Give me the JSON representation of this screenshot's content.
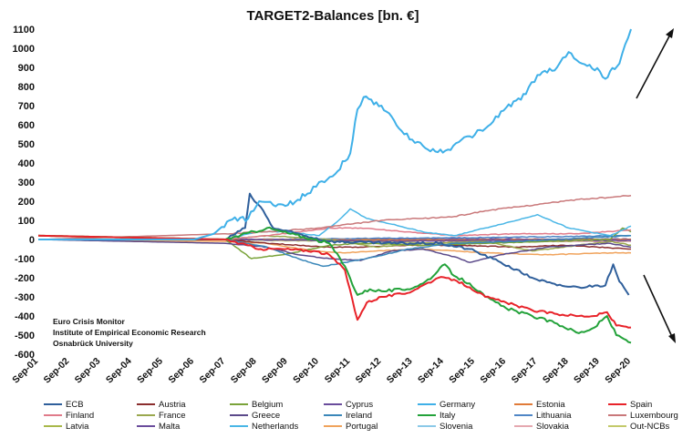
{
  "chart_data": {
    "type": "line",
    "title": "TARGET2-Balances [bn. €]",
    "xlabel": "",
    "ylabel": "",
    "ylim": [
      -600,
      1100
    ],
    "yticks": [
      1100,
      1000,
      900,
      800,
      700,
      600,
      500,
      400,
      300,
      200,
      100,
      0,
      -100,
      -200,
      -300,
      -400,
      -500,
      -600
    ],
    "xlim": [
      2001.67,
      2020.67
    ],
    "xticks": [
      "Sep-01",
      "Sep-02",
      "Sep-03",
      "Sep-04",
      "Sep-05",
      "Sep-06",
      "Sep-07",
      "Sep-08",
      "Sep-09",
      "Sep-10",
      "Sep-11",
      "Sep-12",
      "Sep-13",
      "Sep-14",
      "Sep-15",
      "Sep-16",
      "Sep-17",
      "Sep-18",
      "Sep-19",
      "Sep-20"
    ],
    "annotation_lines": [
      "Euro Crisis Monitor",
      "Institute of Empirical Economic Research",
      "Osnabrück University"
    ],
    "arrows": [
      "up",
      "down"
    ],
    "legend_position": "bottom",
    "series": [
      {
        "name": "ECB",
        "color": "#2f5f9b",
        "x": [
          2001.67,
          2007.67,
          2008.3,
          2008.45,
          2008.6,
          2008.8,
          2009.2,
          2011.0,
          2013.0,
          2014.5,
          2015.5,
          2016.5,
          2017.5,
          2018.3,
          2019.0,
          2019.6,
          2019.85,
          2020.1,
          2020.3,
          2020.6
        ],
        "y": [
          0,
          0,
          60,
          240,
          200,
          170,
          60,
          -10,
          -20,
          -20,
          -50,
          -120,
          -200,
          -240,
          -250,
          -240,
          -240,
          -130,
          -220,
          -290
        ]
      },
      {
        "name": "Austria",
        "color": "#8b2e2e",
        "x": [
          2001.67,
          2007.67,
          2009.0,
          2011.0,
          2012.0,
          2013.5,
          2015.0,
          2017.0,
          2018.5,
          2020.67
        ],
        "y": [
          0,
          0,
          -20,
          -40,
          -40,
          -30,
          -30,
          -40,
          -30,
          -50
        ]
      },
      {
        "name": "Belgium",
        "color": "#7aa33a",
        "x": [
          2001.67,
          2007.67,
          2008.0,
          2008.5,
          2009.5,
          2011.0,
          2012.0,
          2014.0,
          2016.0,
          2018.0,
          2020.0,
          2020.4,
          2020.67
        ],
        "y": [
          0,
          0,
          -40,
          -100,
          -80,
          -30,
          -20,
          -30,
          -20,
          -10,
          0,
          60,
          40
        ]
      },
      {
        "name": "Cyprus",
        "color": "#6a4c9c",
        "x": [
          2001.67,
          2008.0,
          2011.0,
          2012.5,
          2013.5,
          2016.0,
          2020.67
        ],
        "y": [
          0,
          0,
          -5,
          -10,
          -8,
          -5,
          -5
        ]
      },
      {
        "name": "Germany",
        "color": "#3fb0e8",
        "x": [
          2001.67,
          2006.67,
          2007.3,
          2007.8,
          2008.4,
          2008.75,
          2009.2,
          2009.67,
          2010.3,
          2010.67,
          2011.1,
          2011.67,
          2011.9,
          2012.1,
          2012.67,
          2013.4,
          2014.0,
          2014.4,
          2014.8,
          2015.5,
          2016.0,
          2016.67,
          2017.3,
          2017.67,
          2018.3,
          2018.67,
          2019.1,
          2019.67,
          2019.85,
          2020.0,
          2020.3,
          2020.67
        ],
        "y": [
          0,
          0,
          30,
          100,
          110,
          200,
          180,
          180,
          240,
          300,
          330,
          450,
          680,
          745,
          700,
          550,
          490,
          460,
          470,
          540,
          580,
          690,
          760,
          860,
          900,
          980,
          920,
          880,
          840,
          880,
          920,
          1100
        ]
      },
      {
        "name": "Estonia",
        "color": "#e07b39",
        "x": [
          2001.67,
          2008.0,
          2012.0,
          2016.0,
          2020.67
        ],
        "y": [
          0,
          0,
          -2,
          -2,
          0
        ]
      },
      {
        "name": "Spain",
        "color": "#e8232a",
        "x": [
          2001.67,
          2007.67,
          2008.8,
          2009.5,
          2010.5,
          2011.0,
          2011.5,
          2011.9,
          2012.2,
          2012.67,
          2013.5,
          2014.0,
          2014.5,
          2015.0,
          2015.5,
          2016.0,
          2016.67,
          2017.5,
          2018.3,
          2019.0,
          2019.5,
          2019.9,
          2020.2,
          2020.67
        ],
        "y": [
          20,
          0,
          -50,
          -50,
          -60,
          -80,
          -160,
          -420,
          -330,
          -300,
          -280,
          -240,
          -200,
          -210,
          -250,
          -300,
          -330,
          -370,
          -390,
          -400,
          -400,
          -380,
          -450,
          -460
        ]
      },
      {
        "name": "Finland",
        "color": "#e07b8a",
        "x": [
          2001.67,
          2007.67,
          2009.0,
          2011.0,
          2012.0,
          2013.5,
          2015.0,
          2017.0,
          2019.0,
          2020.67
        ],
        "y": [
          0,
          0,
          20,
          60,
          60,
          40,
          20,
          30,
          30,
          50
        ]
      },
      {
        "name": "France",
        "color": "#9aa84e",
        "x": [
          2001.67,
          2007.67,
          2009.0,
          2011.0,
          2012.5,
          2014.0,
          2016.0,
          2017.5,
          2019.0,
          2020.0,
          2020.67
        ],
        "y": [
          0,
          0,
          20,
          0,
          -40,
          -20,
          -10,
          -60,
          -30,
          -10,
          -30
        ]
      },
      {
        "name": "Greece",
        "color": "#5b4a8a",
        "x": [
          2001.67,
          2007.67,
          2009.0,
          2010.0,
          2011.0,
          2012.0,
          2013.0,
          2014.0,
          2015.0,
          2015.5,
          2016.5,
          2018.0,
          2020.0,
          2020.67
        ],
        "y": [
          0,
          -20,
          -40,
          -80,
          -100,
          -110,
          -60,
          -50,
          -90,
          -120,
          -80,
          -40,
          -20,
          -40
        ]
      },
      {
        "name": "Ireland",
        "color": "#3a87b9",
        "x": [
          2001.67,
          2007.67,
          2009.0,
          2010.0,
          2010.8,
          2011.5,
          2012.5,
          2013.5,
          2015.0,
          2017.0,
          2020.67
        ],
        "y": [
          0,
          0,
          -40,
          -100,
          -140,
          -120,
          -90,
          -50,
          -20,
          -10,
          20
        ]
      },
      {
        "name": "Italy",
        "color": "#23a23a",
        "x": [
          2001.67,
          2007.67,
          2009.0,
          2010.5,
          2011.0,
          2011.5,
          2011.9,
          2012.3,
          2012.67,
          2013.5,
          2014.0,
          2014.4,
          2014.7,
          2015.0,
          2015.5,
          2016.0,
          2016.67,
          2017.5,
          2018.3,
          2019.0,
          2019.5,
          2019.9,
          2020.2,
          2020.67
        ],
        "y": [
          20,
          0,
          60,
          0,
          -20,
          -140,
          -290,
          -260,
          -270,
          -260,
          -230,
          -180,
          -130,
          -190,
          -230,
          -300,
          -360,
          -400,
          -440,
          -490,
          -460,
          -400,
          -500,
          -540
        ]
      },
      {
        "name": "Lithuania",
        "color": "#4f86c6",
        "x": [
          2001.67,
          2008.0,
          2012.0,
          2016.0,
          2020.67
        ],
        "y": [
          0,
          0,
          5,
          10,
          20
        ]
      },
      {
        "name": "Luxembourg",
        "color": "#c9787a",
        "x": [
          2001.67,
          2007.67,
          2009.0,
          2010.67,
          2011.67,
          2012.67,
          2014.0,
          2015.0,
          2016.0,
          2017.0,
          2018.0,
          2019.0,
          2020.0,
          2020.67
        ],
        "y": [
          0,
          30,
          40,
          60,
          80,
          100,
          110,
          120,
          150,
          170,
          190,
          210,
          220,
          230
        ]
      },
      {
        "name": "Latvia",
        "color": "#a8b84a",
        "x": [
          2001.67,
          2008.0,
          2012.0,
          2016.0,
          2020.67
        ],
        "y": [
          0,
          0,
          -2,
          -2,
          -2
        ]
      },
      {
        "name": "Malta",
        "color": "#6a4c9c",
        "x": [
          2001.67,
          2008.0,
          2012.0,
          2016.0,
          2020.67
        ],
        "y": [
          0,
          0,
          2,
          2,
          2
        ]
      },
      {
        "name": "Netherlands",
        "color": "#49b6e6",
        "x": [
          2001.67,
          2007.67,
          2008.67,
          2009.67,
          2010.67,
          2011.3,
          2011.67,
          2012.2,
          2013.0,
          2014.0,
          2015.0,
          2016.0,
          2017.0,
          2017.67,
          2018.67,
          2019.67,
          2020.0,
          2020.67
        ],
        "y": [
          0,
          0,
          40,
          40,
          20,
          100,
          160,
          110,
          80,
          40,
          20,
          60,
          100,
          130,
          60,
          30,
          20,
          70
        ]
      },
      {
        "name": "Portugal",
        "color": "#f0a35c",
        "x": [
          2001.67,
          2007.67,
          2009.0,
          2010.5,
          2011.5,
          2012.5,
          2014.0,
          2016.0,
          2018.0,
          2020.0,
          2020.67
        ],
        "y": [
          0,
          -10,
          -20,
          -60,
          -70,
          -60,
          -50,
          -70,
          -80,
          -70,
          -70
        ]
      },
      {
        "name": "Slovenia",
        "color": "#8bc9e8",
        "x": [
          2001.67,
          2008.0,
          2012.0,
          2016.0,
          2020.67
        ],
        "y": [
          0,
          0,
          -3,
          -3,
          -5
        ]
      },
      {
        "name": "Slovakia",
        "color": "#e5a8b0",
        "x": [
          2001.67,
          2008.0,
          2012.0,
          2016.0,
          2020.67
        ],
        "y": [
          0,
          0,
          -5,
          -10,
          -10
        ]
      },
      {
        "name": "Out-NCBs",
        "color": "#c3c96a",
        "x": [
          2001.67,
          2007.67,
          2009.0,
          2012.0,
          2015.0,
          2018.0,
          2020.67
        ],
        "y": [
          0,
          0,
          -5,
          -10,
          -20,
          -10,
          -10
        ]
      }
    ]
  }
}
